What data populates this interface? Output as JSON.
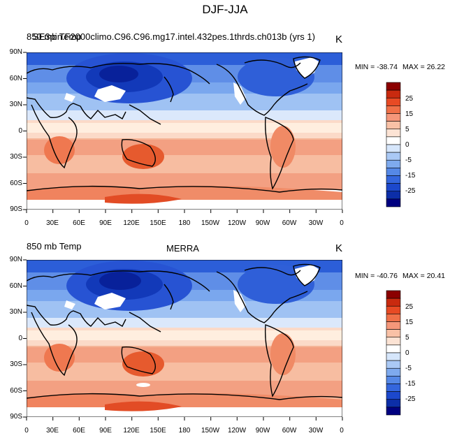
{
  "title": "DJF-JJA",
  "panels": [
    {
      "left_label": "850 mb Temp",
      "case_name": "SE3pin.F2000climo.C96.C96.mg17.intel.432pes.1thrds.ch013b (yrs 1)",
      "unit": "K",
      "min_text": "MIN = -38.74",
      "max_text": "MAX =  26.22"
    },
    {
      "left_label": "850 mb Temp",
      "center_label": "MERRA",
      "unit": "K",
      "min_text": "MIN = -40.76",
      "max_text": "MAX =  20.41"
    }
  ],
  "lat_ticks": [
    "90N",
    "60N",
    "30N",
    "0",
    "30S",
    "60S",
    "90S"
  ],
  "lon_ticks": [
    "0",
    "30E",
    "60E",
    "90E",
    "120E",
    "150E",
    "180",
    "150W",
    "120W",
    "90W",
    "60W",
    "30W",
    "0"
  ],
  "colorbar": {
    "labels": [
      "25",
      "15",
      "5",
      "0",
      "-5",
      "-15",
      "-25"
    ],
    "colors": [
      "#8b0000",
      "#c92a0f",
      "#e84a24",
      "#f07048",
      "#f5977a",
      "#f9c1a6",
      "#fce3d4",
      "#ffffff",
      "#d6e6fb",
      "#aac9f5",
      "#7eaaee",
      "#5588e6",
      "#3466dd",
      "#1c48cc",
      "#0c2ea8",
      "#000080"
    ]
  }
}
